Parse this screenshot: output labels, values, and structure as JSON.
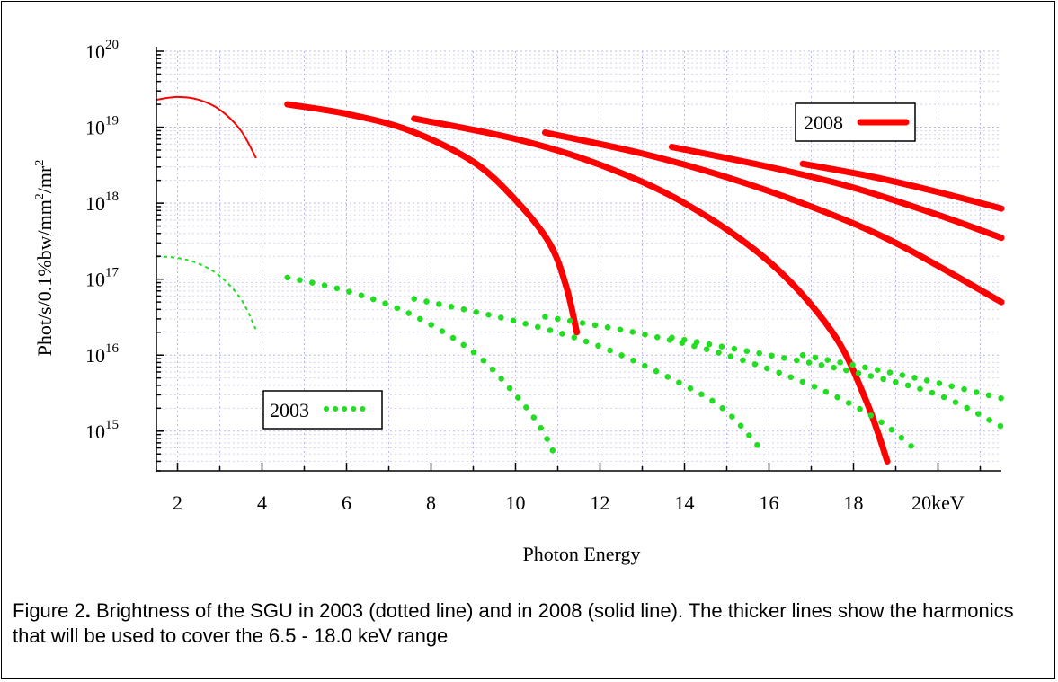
{
  "caption": {
    "prefix": "Figure 2",
    "bold_mark": ".",
    "text": " Brightness of the SGU in 2003 (dotted line) and in 2008 (solid line). The thicker lines show the harmonics that will be used to cover the 6.5 - 18.0 keV range"
  },
  "chart_data": {
    "type": "line",
    "title": "",
    "xlabel": "Photon Energy",
    "ylabel": "Phot/s/0.1%bw/mm²/mr²",
    "ylabel_parts": {
      "a": "Phot/s/0.1%bw/mm",
      "b": "2",
      "c": "/mr",
      "d": "2"
    },
    "xlim": [
      1.5,
      21.5
    ],
    "ylim": [
      300000000000000.0,
      1e+20
    ],
    "yscale": "log",
    "grid": true,
    "x_ticks": [
      {
        "value": 2,
        "label": "2"
      },
      {
        "value": 4,
        "label": "4"
      },
      {
        "value": 6,
        "label": "6"
      },
      {
        "value": 8,
        "label": "8"
      },
      {
        "value": 10,
        "label": "10"
      },
      {
        "value": 12,
        "label": "12"
      },
      {
        "value": 14,
        "label": "14"
      },
      {
        "value": 16,
        "label": "16"
      },
      {
        "value": 18,
        "label": "18"
      },
      {
        "value": 20,
        "label": "20keV"
      }
    ],
    "y_ticks": [
      {
        "value": 1000000000000000.0,
        "base": "10",
        "exp": "15"
      },
      {
        "value": 1e+16,
        "base": "10",
        "exp": "16"
      },
      {
        "value": 1e+17,
        "base": "10",
        "exp": "17"
      },
      {
        "value": 1e+18,
        "base": "10",
        "exp": "18"
      },
      {
        "value": 1e+19,
        "base": "10",
        "exp": "19"
      },
      {
        "value": 1e+20,
        "base": "10",
        "exp": "20"
      }
    ],
    "legend": [
      {
        "label": "2008",
        "style": "solid",
        "color": "#ff0000",
        "position": "top-right"
      },
      {
        "label": "2003",
        "style": "dotted",
        "color": "#22dd22",
        "position": "bottom-left"
      }
    ],
    "series": [
      {
        "year": "2008",
        "harmonic": 1,
        "style": "solid-thin",
        "color": "#ff0000",
        "x": [
          1.5,
          2.0,
          2.5,
          3.0,
          3.5,
          3.85
        ],
        "y": [
          2.3e+19,
          2.5e+19,
          2.3e+19,
          1.7e+19,
          9e+18,
          4e+18
        ]
      },
      {
        "year": "2008",
        "harmonic": 2,
        "style": "solid-thick",
        "color": "#ff0000",
        "x": [
          4.6,
          6.0,
          7.5,
          9.0,
          10.0,
          10.8,
          11.2,
          11.45
        ],
        "y": [
          2e+19,
          1.5e+19,
          9e+18,
          3.5e+18,
          1.1e+18,
          3e+17,
          8e+16,
          2e+16
        ]
      },
      {
        "year": "2008",
        "harmonic": 3,
        "style": "solid-thick",
        "color": "#ff0000",
        "x": [
          7.6,
          10.0,
          12.0,
          14.0,
          16.0,
          17.5,
          18.3,
          18.8
        ],
        "y": [
          1.3e+19,
          7e+18,
          3.2e+18,
          1e+18,
          1.7e+17,
          2e+16,
          2500000000000000.0,
          400000000000000.0
        ]
      },
      {
        "year": "2008",
        "harmonic": 4,
        "style": "solid-thick",
        "color": "#ff0000",
        "x": [
          10.7,
          13.0,
          15.0,
          17.0,
          19.0,
          21.5
        ],
        "y": [
          8.5e+18,
          4.5e+18,
          2.2e+18,
          9e+17,
          3e+17,
          5e+16
        ]
      },
      {
        "year": "2008",
        "harmonic": 5,
        "style": "solid-thick",
        "color": "#ff0000",
        "x": [
          13.7,
          16.0,
          18.0,
          20.0,
          21.5
        ],
        "y": [
          5.5e+18,
          3e+18,
          1.6e+18,
          7e+17,
          3.5e+17
        ]
      },
      {
        "year": "2008",
        "harmonic": 6,
        "style": "solid-thick",
        "color": "#ff0000",
        "x": [
          16.8,
          18.5,
          20.0,
          21.5
        ],
        "y": [
          3.3e+18,
          2.2e+18,
          1.4e+18,
          8.5e+17
        ]
      },
      {
        "year": "2003",
        "harmonic": 1,
        "style": "dotted-thin",
        "color": "#22dd22",
        "x": [
          1.5,
          2.0,
          2.5,
          3.0,
          3.5,
          3.85
        ],
        "y": [
          2e+17,
          1.9e+17,
          1.6e+17,
          1.1e+17,
          5.5e+16,
          2.2e+16
        ]
      },
      {
        "year": "2003",
        "harmonic": 2,
        "style": "dotted-thick",
        "color": "#22dd22",
        "x": [
          4.6,
          6.0,
          7.5,
          9.0,
          10.0,
          10.6,
          11.0
        ],
        "y": [
          1.05e+17,
          7e+16,
          3.5e+16,
          1.1e+16,
          3000000000000000.0,
          1100000000000000.0,
          400000000000000.0
        ]
      },
      {
        "year": "2003",
        "harmonic": 3,
        "style": "dotted-thick",
        "color": "#22dd22",
        "x": [
          7.6,
          10.0,
          12.0,
          14.0,
          15.0,
          15.9
        ],
        "y": [
          5.5e+16,
          2.8e+16,
          1.3e+16,
          4000000000000000.0,
          1800000000000000.0,
          500000000000000.0
        ]
      },
      {
        "year": "2003",
        "harmonic": 4,
        "style": "dotted-thick",
        "color": "#22dd22",
        "x": [
          10.7,
          13.0,
          15.0,
          17.0,
          18.5,
          19.5
        ],
        "y": [
          3.2e+16,
          1.9e+16,
          1e+16,
          4000000000000000.0,
          1500000000000000.0,
          550000000000000.0
        ]
      },
      {
        "year": "2003",
        "harmonic": 5,
        "style": "dotted-thick",
        "color": "#22dd22",
        "x": [
          13.7,
          16.0,
          18.0,
          20.0,
          21.5
        ],
        "y": [
          1.7e+16,
          1e+16,
          6000000000000000.0,
          3000000000000000.0,
          1150000000000000.0
        ]
      },
      {
        "year": "2003",
        "harmonic": 6,
        "style": "dotted-thick",
        "color": "#22dd22",
        "x": [
          16.8,
          18.5,
          20.0,
          21.5
        ],
        "y": [
          1e+16,
          6500000000000000.0,
          4300000000000000.0,
          2700000000000000.0
        ]
      }
    ]
  }
}
